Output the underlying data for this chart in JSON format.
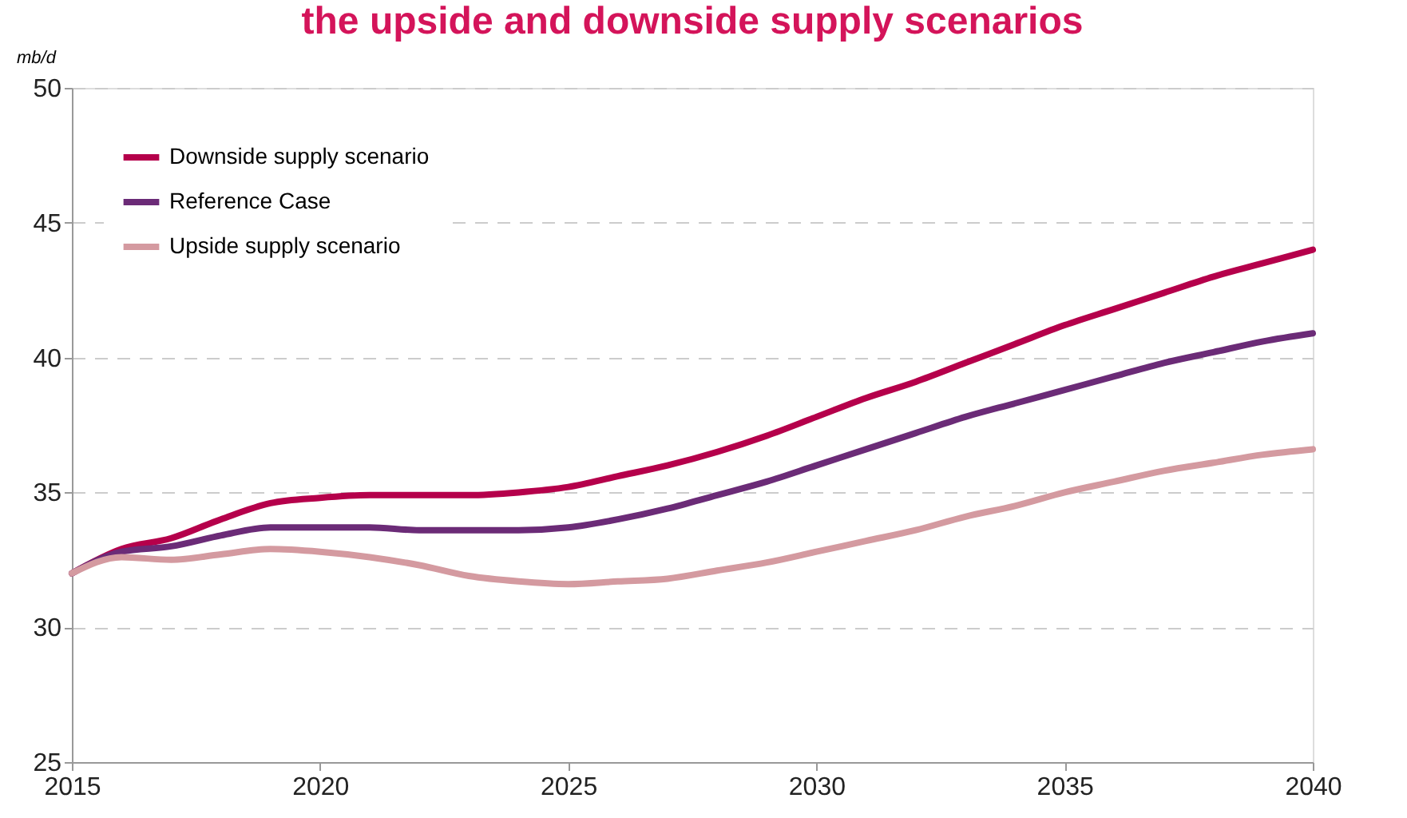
{
  "chart_data": {
    "type": "line",
    "title": "the upside and downside supply scenarios",
    "ylabel": "mb/d",
    "x": [
      2015,
      2016,
      2017,
      2018,
      2019,
      2020,
      2021,
      2022,
      2023,
      2024,
      2025,
      2026,
      2027,
      2028,
      2029,
      2030,
      2031,
      2032,
      2033,
      2034,
      2035,
      2036,
      2037,
      2038,
      2039,
      2040
    ],
    "series": [
      {
        "name": "Downside supply scenario",
        "color": "#b5004b",
        "values": [
          32.0,
          32.9,
          33.3,
          34.0,
          34.6,
          34.8,
          34.9,
          34.9,
          34.9,
          35.0,
          35.2,
          35.6,
          36.0,
          36.5,
          37.1,
          37.8,
          38.5,
          39.1,
          39.8,
          40.5,
          41.2,
          41.8,
          42.4,
          43.0,
          43.5,
          44.0
        ]
      },
      {
        "name": "Reference Case",
        "color": "#6b2b77",
        "values": [
          32.0,
          32.8,
          33.0,
          33.4,
          33.7,
          33.7,
          33.7,
          33.6,
          33.6,
          33.6,
          33.7,
          34.0,
          34.4,
          34.9,
          35.4,
          36.0,
          36.6,
          37.2,
          37.8,
          38.3,
          38.8,
          39.3,
          39.8,
          40.2,
          40.6,
          40.9
        ]
      },
      {
        "name": "Upside supply scenario",
        "color": "#d49aa0",
        "values": [
          32.0,
          32.6,
          32.5,
          32.7,
          32.9,
          32.8,
          32.6,
          32.3,
          31.9,
          31.7,
          31.6,
          31.7,
          31.8,
          32.1,
          32.4,
          32.8,
          33.2,
          33.6,
          34.1,
          34.5,
          35.0,
          35.4,
          35.8,
          36.1,
          36.4,
          36.6
        ]
      }
    ],
    "xlim": [
      2015,
      2040
    ],
    "xticks": [
      2015,
      2020,
      2025,
      2030,
      2035,
      2040
    ],
    "ylim": [
      25,
      50
    ],
    "yticks": [
      25,
      30,
      35,
      40,
      45,
      50
    ],
    "grid": "y",
    "legend": "top left",
    "line_style": "solid",
    "marker": "none"
  }
}
